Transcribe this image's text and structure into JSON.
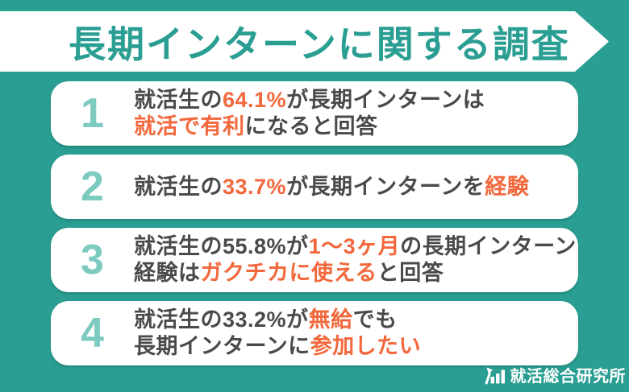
{
  "colors": {
    "background_teal": "#2A9E92",
    "card_white": "#FFFFFF",
    "number_teal": "#7DCAC1",
    "text_dark": "#4A4A4A",
    "accent_orange": "#F2683C"
  },
  "title": {
    "text": "長期インターンに関する調査"
  },
  "rows": [
    {
      "number": "1",
      "lines": [
        {
          "segments": [
            {
              "text": "就活生の",
              "highlight": false
            },
            {
              "text": "64.1%",
              "highlight": true
            },
            {
              "text": "が長期インターンは",
              "highlight": false
            }
          ]
        },
        {
          "segments": [
            {
              "text": "就活で有利",
              "highlight": true
            },
            {
              "text": "になると回答",
              "highlight": false
            }
          ]
        }
      ]
    },
    {
      "number": "2",
      "lines": [
        {
          "segments": [
            {
              "text": "就活生の",
              "highlight": false
            },
            {
              "text": "33.7%",
              "highlight": true
            },
            {
              "text": "が長期インターンを",
              "highlight": false
            },
            {
              "text": "経験",
              "highlight": true
            }
          ]
        }
      ]
    },
    {
      "number": "3",
      "lines": [
        {
          "segments": [
            {
              "text": "就活生の55.8%が",
              "highlight": false
            },
            {
              "text": "1〜3ヶ月",
              "highlight": true
            },
            {
              "text": "の長期インターン",
              "highlight": false
            }
          ]
        },
        {
          "segments": [
            {
              "text": "経験は",
              "highlight": false
            },
            {
              "text": "ガクチカに使える",
              "highlight": true
            },
            {
              "text": "と回答",
              "highlight": false
            }
          ]
        }
      ]
    },
    {
      "number": "4",
      "lines": [
        {
          "segments": [
            {
              "text": "就活生の33.2%が",
              "highlight": false
            },
            {
              "text": "無給",
              "highlight": true
            },
            {
              "text": "でも",
              "highlight": false
            }
          ]
        },
        {
          "segments": [
            {
              "text": "長期インターンに",
              "highlight": false
            },
            {
              "text": "参加したい",
              "highlight": true
            }
          ]
        }
      ]
    }
  ],
  "footer": {
    "logo_text": "就活総合研究所",
    "logo_icon": "growth-chart-icon"
  }
}
